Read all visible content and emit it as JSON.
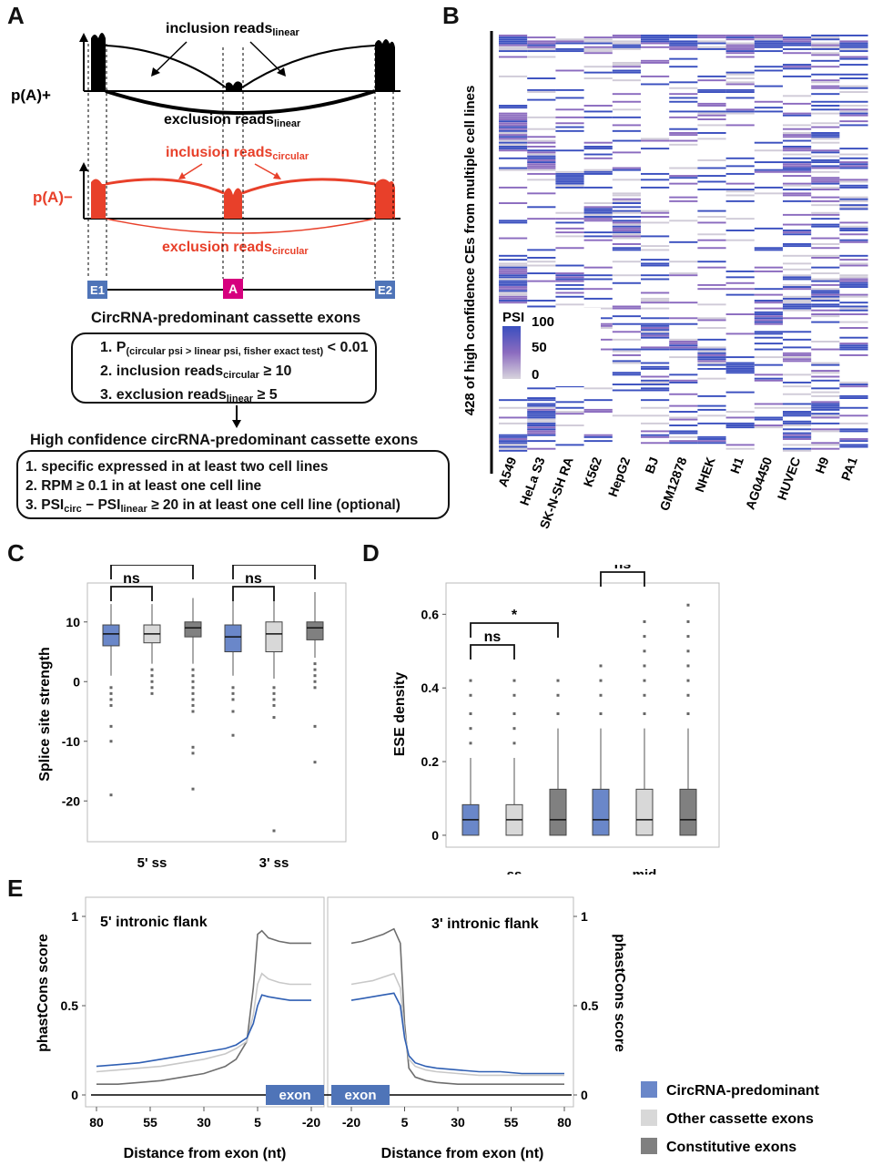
{
  "panels": {
    "A": "A",
    "B": "B",
    "C": "C",
    "D": "D",
    "E": "E"
  },
  "panelA": {
    "pA_plus": "p(A)+",
    "pA_minus": "p(A)−",
    "inclusion_linear": "inclusion reads",
    "inclusion_linear_sub": "linear",
    "exclusion_linear": "exclusion reads",
    "exclusion_linear_sub": "linear",
    "inclusion_circular": "inclusion reads",
    "inclusion_circular_sub": "circular",
    "exclusion_circular": "exclusion reads",
    "exclusion_circular_sub": "circular",
    "exon_e1": "E1",
    "exon_a": "A",
    "exon_e2": "E2",
    "heading1": "CircRNA-predominant cassette exons",
    "criteria1": {
      "c1_pre": "1. P",
      "c1_sub": "(circular psi > linear psi, fisher exact test)",
      "c1_post": " < 0.01",
      "c2_pre": "2. inclusion reads",
      "c2_sub": "circular",
      "c2_post": " ≥ 10",
      "c3_pre": "3. exclusion reads",
      "c3_sub": "linear",
      "c3_post": " ≥ 5"
    },
    "heading2": "High confidence circRNA-predominant cassette exons",
    "criteria2": {
      "c1": "1. specific expressed in at least two cell lines",
      "c2": "2. RPM ≥ 0.1 in at least one cell line",
      "c3_pre": "3. PSI",
      "c3_sub1": "circ",
      "c3_mid": " − PSI",
      "c3_sub2": "linear",
      "c3_post": " ≥ 20 in at least one cell line (optional)"
    },
    "colors": {
      "linear": "#000000",
      "circular": "#e8402a",
      "exon_blue": "#4f74b8",
      "exon_pink": "#d6007e"
    }
  },
  "panelB": {
    "ylabel": "428 of high confidence CEs from multiple cell lines",
    "legend_title": "PSI",
    "legend_ticks": [
      "100",
      "50",
      "0"
    ],
    "cell_lines": [
      "A549",
      "HeLa S3",
      "SK-N-SH RA",
      "K562",
      "HepG2",
      "BJ",
      "GM12878",
      "NHEK",
      "H1",
      "AG04450",
      "HUVEC",
      "H9",
      "PA1"
    ],
    "colors": {
      "high": "#3a4fbf",
      "mid": "#8b6bbf",
      "low": "#d0cbd8"
    }
  },
  "chart_data": [
    {
      "type": "box",
      "panel": "C",
      "ylabel": "Splice site strength",
      "categories": [
        "5' ss",
        "3' ss"
      ],
      "ylim": [
        -25,
        15
      ],
      "yticks": [
        "10",
        "0",
        "-10",
        "-20"
      ],
      "series": [
        {
          "color": "#6a87c9",
          "groups": [
            {
              "q1": 6,
              "median": 8,
              "q3": 9.5,
              "wlo": 1,
              "whi": 13,
              "outliers": [
                -1,
                -2,
                -3,
                -4,
                -7.5,
                -10,
                -19
              ]
            },
            {
              "q1": 5,
              "median": 7.5,
              "q3": 9.5,
              "wlo": 1,
              "whi": 13.5,
              "outliers": [
                -1,
                -2,
                -3,
                -5,
                -9
              ]
            }
          ]
        },
        {
          "color": "#d8d8d8",
          "groups": [
            {
              "q1": 6.5,
              "median": 8,
              "q3": 9.5,
              "wlo": 3,
              "whi": 13,
              "outliers": [
                2,
                1,
                0,
                -1,
                -2
              ]
            },
            {
              "q1": 5,
              "median": 8,
              "q3": 10,
              "wlo": 0.5,
              "whi": 13.5,
              "outliers": [
                -1,
                -2,
                -3,
                -4,
                -6,
                -25
              ]
            }
          ]
        },
        {
          "color": "#808080",
          "groups": [
            {
              "q1": 7.5,
              "median": 9,
              "q3": 10,
              "wlo": 3,
              "whi": 14,
              "outliers": [
                2,
                1,
                0,
                -1,
                -2,
                -3,
                -4,
                -5,
                -11,
                -12,
                -18
              ]
            },
            {
              "q1": 7,
              "median": 9,
              "q3": 10,
              "wlo": 4,
              "whi": 15,
              "outliers": [
                3,
                2,
                1,
                0,
                -1,
                -7.5,
                -13.5
              ]
            }
          ]
        }
      ],
      "annotations": [
        {
          "text": "ns",
          "from": 0,
          "to": 1,
          "cat": 0
        },
        {
          "text": "**",
          "from": 0,
          "to": 2,
          "cat": 0
        },
        {
          "text": "ns",
          "from": 0,
          "to": 1,
          "cat": 1
        },
        {
          "text": "**",
          "from": 0,
          "to": 2,
          "cat": 1
        }
      ]
    },
    {
      "type": "box",
      "panel": "D",
      "ylabel": "ESE density",
      "categories": [
        "ss",
        "mid"
      ],
      "ylim": [
        -0.02,
        0.68
      ],
      "yticks": [
        "0",
        "0.2",
        "0.4",
        "0.6"
      ],
      "series": [
        {
          "color": "#6a87c9",
          "groups": [
            {
              "q1": 0,
              "median": 0.042,
              "q3": 0.083,
              "wlo": 0,
              "whi": 0.21,
              "outliers": [
                0.25,
                0.29,
                0.33,
                0.38,
                0.42
              ]
            },
            {
              "q1": 0,
              "median": 0.042,
              "q3": 0.125,
              "wlo": 0,
              "whi": 0.29,
              "outliers": [
                0.33,
                0.38,
                0.42,
                0.46
              ]
            }
          ]
        },
        {
          "color": "#d8d8d8",
          "groups": [
            {
              "q1": 0,
              "median": 0.042,
              "q3": 0.083,
              "wlo": 0,
              "whi": 0.21,
              "outliers": [
                0.25,
                0.29,
                0.33,
                0.38,
                0.42
              ]
            },
            {
              "q1": 0,
              "median": 0.042,
              "q3": 0.125,
              "wlo": 0,
              "whi": 0.29,
              "outliers": [
                0.33,
                0.38,
                0.42,
                0.46,
                0.5,
                0.54,
                0.58
              ]
            }
          ]
        },
        {
          "color": "#808080",
          "groups": [
            {
              "q1": 0,
              "median": 0.042,
              "q3": 0.125,
              "wlo": 0,
              "whi": 0.29,
              "outliers": [
                0.33,
                0.38,
                0.42
              ]
            },
            {
              "q1": 0,
              "median": 0.042,
              "q3": 0.125,
              "wlo": 0,
              "whi": 0.29,
              "outliers": [
                0.33,
                0.38,
                0.42,
                0.46,
                0.5,
                0.54,
                0.58,
                0.625
              ]
            }
          ]
        }
      ],
      "annotations": [
        {
          "text": "ns",
          "from": 0,
          "to": 1,
          "cat": 0
        },
        {
          "text": "*",
          "from": 0,
          "to": 2,
          "cat": 0
        },
        {
          "text": "ns",
          "from": 0,
          "to": 1,
          "cat": 1
        },
        {
          "text": "ns",
          "from": 0,
          "to": 2,
          "cat": 1
        }
      ]
    },
    {
      "type": "line",
      "panel": "E",
      "ylabel_left": "phastCons score",
      "ylabel_right": "phastCons score",
      "xlabel": "Distance from exon (nt)",
      "left_title": "5' intronic flank",
      "right_title": "3' intronic flank",
      "exon_label": "exon",
      "left_xticks": [
        "80",
        "55",
        "30",
        "5",
        "-20"
      ],
      "right_xticks": [
        "-20",
        "5",
        "30",
        "55",
        "80"
      ],
      "yticks": [
        "0",
        "0.5",
        "1"
      ],
      "ylim": [
        0,
        1
      ],
      "left_x": [
        80,
        70,
        60,
        50,
        40,
        30,
        20,
        15,
        10,
        7,
        5,
        3,
        0,
        -5,
        -10,
        -15,
        -20
      ],
      "right_x": [
        -20,
        -15,
        -10,
        -5,
        0,
        3,
        5,
        7,
        10,
        15,
        20,
        30,
        40,
        50,
        60,
        70,
        80
      ],
      "series": [
        {
          "name": "CircRNA-predominant",
          "color": "#2f5fb3",
          "left": [
            0.16,
            0.17,
            0.18,
            0.2,
            0.22,
            0.24,
            0.26,
            0.28,
            0.32,
            0.4,
            0.5,
            0.56,
            0.55,
            0.54,
            0.53,
            0.53,
            0.53
          ],
          "right": [
            0.53,
            0.54,
            0.55,
            0.56,
            0.57,
            0.5,
            0.32,
            0.22,
            0.18,
            0.16,
            0.15,
            0.14,
            0.13,
            0.13,
            0.12,
            0.12,
            0.12
          ]
        },
        {
          "name": "Other cassette exons",
          "color": "#c8c8c8",
          "left": [
            0.13,
            0.14,
            0.15,
            0.16,
            0.18,
            0.2,
            0.23,
            0.26,
            0.3,
            0.45,
            0.62,
            0.68,
            0.65,
            0.63,
            0.62,
            0.62,
            0.62
          ],
          "right": [
            0.62,
            0.63,
            0.64,
            0.66,
            0.68,
            0.6,
            0.35,
            0.2,
            0.16,
            0.14,
            0.13,
            0.12,
            0.11,
            0.11,
            0.11,
            0.11,
            0.11
          ]
        },
        {
          "name": "Constitutive exons",
          "color": "#6e6e6e",
          "left": [
            0.06,
            0.06,
            0.07,
            0.08,
            0.1,
            0.12,
            0.16,
            0.2,
            0.3,
            0.6,
            0.9,
            0.92,
            0.88,
            0.86,
            0.85,
            0.85,
            0.85
          ],
          "right": [
            0.85,
            0.86,
            0.88,
            0.9,
            0.93,
            0.85,
            0.4,
            0.15,
            0.1,
            0.08,
            0.07,
            0.06,
            0.06,
            0.06,
            0.06,
            0.06,
            0.06
          ]
        }
      ]
    }
  ],
  "legend": [
    {
      "label": "CircRNA-predominant",
      "color": "#6a87c9"
    },
    {
      "label": "Other cassette exons",
      "color": "#d8d8d8"
    },
    {
      "label": "Constitutive exons",
      "color": "#808080"
    }
  ]
}
